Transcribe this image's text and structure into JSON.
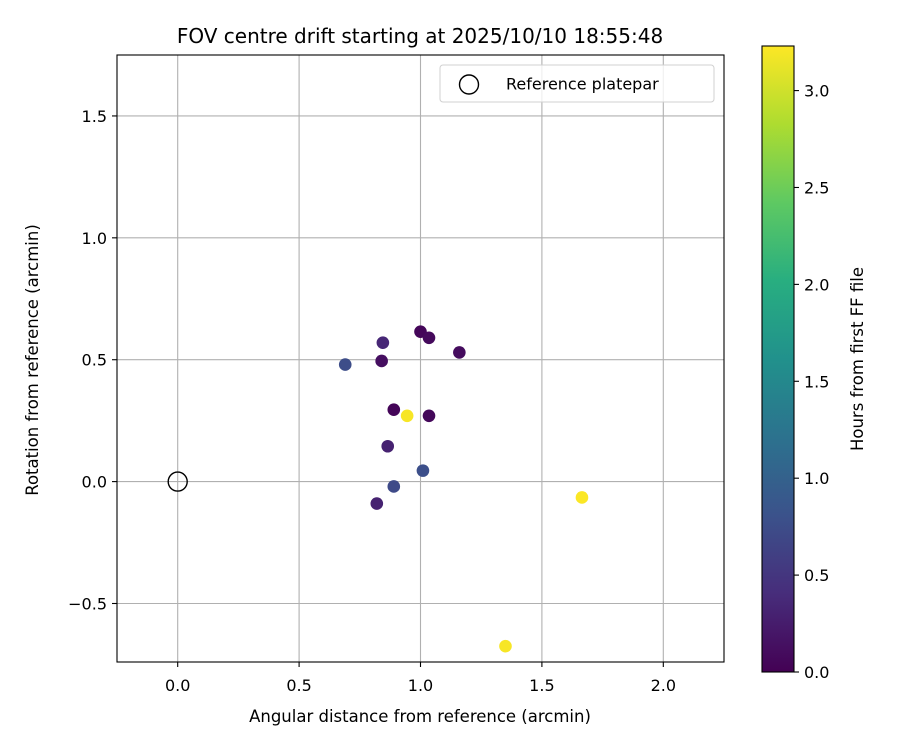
{
  "chart_data": {
    "type": "scatter",
    "title": "FOV centre drift starting at 2025/10/10 18:55:48",
    "xlabel": "Angular distance from reference (arcmin)",
    "ylabel": "Rotation from reference (arcmin)",
    "xlim": [
      -0.25,
      2.25
    ],
    "ylim": [
      -0.74,
      1.75
    ],
    "xticks": [
      0.0,
      0.5,
      1.0,
      1.5,
      2.0
    ],
    "xtick_labels": [
      "0.0",
      "0.5",
      "1.0",
      "1.5",
      "2.0"
    ],
    "yticks": [
      -0.5,
      0.0,
      0.5,
      1.0,
      1.5
    ],
    "ytick_labels": [
      "−0.5",
      "0.0",
      "0.5",
      "1.0",
      "1.5"
    ],
    "grid": true,
    "legend": {
      "position": "top-right",
      "entries": [
        "Reference platepar"
      ]
    },
    "reference_point": {
      "x": 0.0,
      "y": 0.0,
      "label": "Reference platepar"
    },
    "colorbar": {
      "label": "Hours from first FF file",
      "colormap": "viridis",
      "range": [
        0.0,
        3.23
      ],
      "ticks": [
        0.0,
        0.5,
        1.0,
        1.5,
        2.0,
        2.5,
        3.0
      ],
      "tick_labels": [
        "0.0",
        "0.5",
        "1.0",
        "1.5",
        "2.0",
        "2.5",
        "3.0"
      ]
    },
    "points": [
      {
        "x": 1.0,
        "y": 0.615,
        "hours": 0.05
      },
      {
        "x": 1.035,
        "y": 0.59,
        "hours": 0.08
      },
      {
        "x": 1.16,
        "y": 0.53,
        "hours": 0.1
      },
      {
        "x": 0.84,
        "y": 0.495,
        "hours": 0.12
      },
      {
        "x": 0.89,
        "y": 0.295,
        "hours": 0.04
      },
      {
        "x": 1.035,
        "y": 0.27,
        "hours": 0.06
      },
      {
        "x": 0.845,
        "y": 0.57,
        "hours": 0.35
      },
      {
        "x": 0.865,
        "y": 0.145,
        "hours": 0.3
      },
      {
        "x": 0.82,
        "y": -0.09,
        "hours": 0.3
      },
      {
        "x": 0.69,
        "y": 0.48,
        "hours": 0.75
      },
      {
        "x": 0.89,
        "y": -0.02,
        "hours": 0.72
      },
      {
        "x": 1.01,
        "y": 0.045,
        "hours": 0.78
      },
      {
        "x": 0.945,
        "y": 0.27,
        "hours": 3.2
      },
      {
        "x": 1.665,
        "y": -0.065,
        "hours": 3.22
      },
      {
        "x": 1.35,
        "y": -0.675,
        "hours": 3.2
      }
    ]
  }
}
